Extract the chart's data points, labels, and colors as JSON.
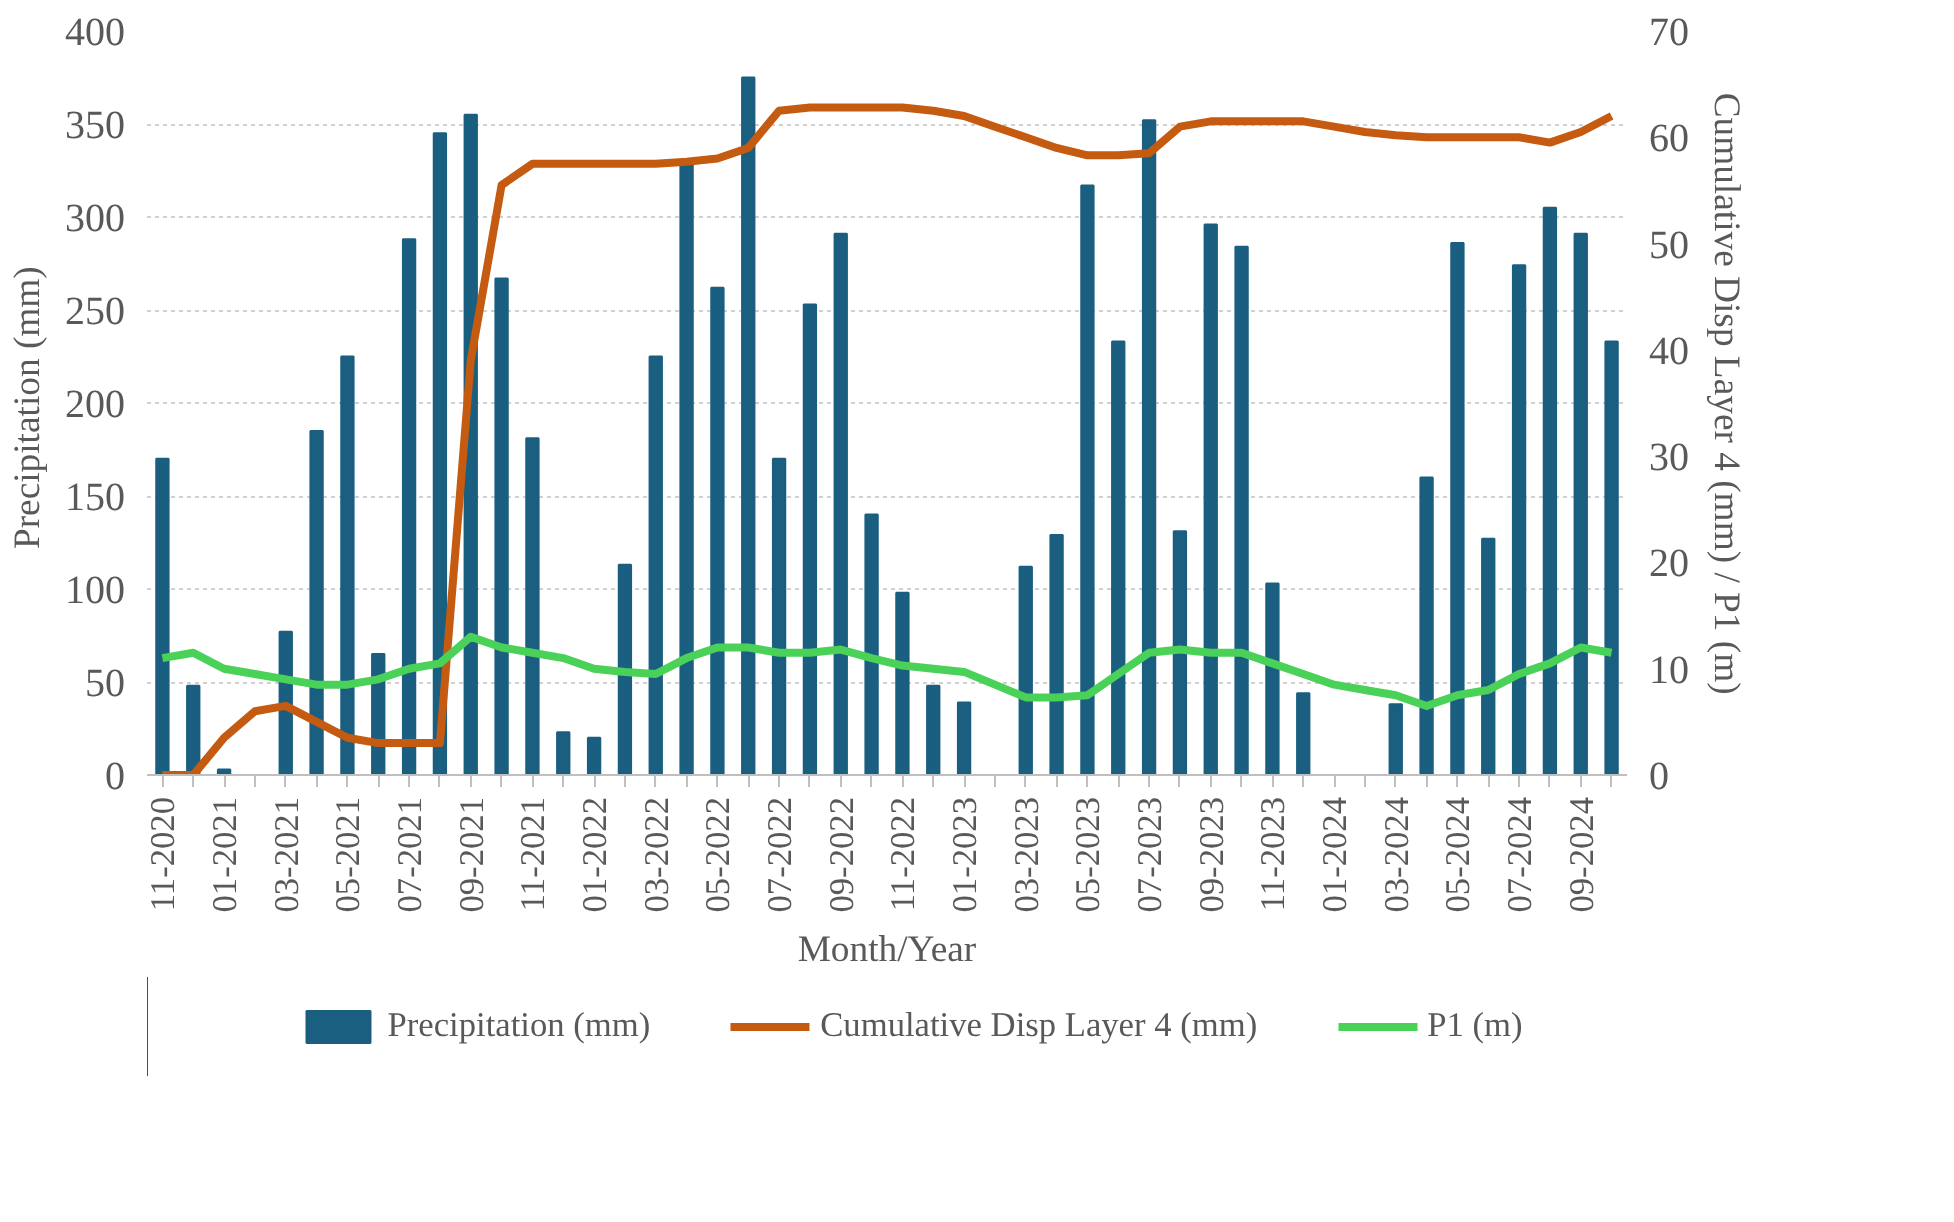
{
  "chart_data": {
    "type": "bar",
    "xlabel": "Month/Year",
    "ylabel": "Precipitation  (mm)",
    "y2label": "Cumulative  Disp Layer 4 (mm)  / P1 (m)",
    "categories": [
      "11-2020",
      null,
      "01-2021",
      null,
      "03-2021",
      null,
      "05-2021",
      null,
      "07-2021",
      null,
      "09-2021",
      null,
      "11-2021",
      null,
      "01-2022",
      null,
      "03-2022",
      null,
      "05-2022",
      null,
      "07-2022",
      null,
      "09-2022",
      null,
      "11-2022",
      null,
      "01-2023",
      null,
      "03-2023",
      null,
      "05-2023",
      null,
      "07-2023",
      null,
      "09-2023",
      null,
      "11-2023",
      null,
      "01-2024",
      null,
      "03-2024",
      null,
      "05-2024",
      null,
      "07-2024",
      null,
      "09-2024",
      null
    ],
    "ylim": [
      0,
      400
    ],
    "yticks": [
      0,
      50,
      100,
      150,
      200,
      250,
      300,
      350,
      400
    ],
    "y2lim": [
      0,
      70
    ],
    "y2ticks": [
      0,
      10,
      20,
      30,
      40,
      50,
      60,
      70
    ],
    "grid": "y",
    "legend": "bottom",
    "series": [
      {
        "name": "Precipitation (mm)",
        "color": "#1a5e80",
        "values": [
          170,
          48,
          3,
          0,
          77,
          185,
          225,
          65,
          288,
          345,
          355,
          267,
          181,
          23,
          20,
          113,
          225,
          330,
          262,
          375,
          170,
          253,
          291,
          140,
          98,
          48,
          39,
          0,
          112,
          129,
          317,
          233,
          352,
          131,
          296,
          284,
          103,
          44,
          0,
          0,
          38,
          160,
          286,
          127,
          274,
          305,
          291,
          233
        ]
      },
      {
        "name": "Cumulative Disp Layer 4 (mm)",
        "type": "line",
        "axis": "y2",
        "color": "#c55a11",
        "values": [
          0,
          0,
          3.5,
          6,
          6.5,
          5,
          3.5,
          3,
          3,
          3,
          39,
          55.5,
          57.5,
          57.5,
          57.5,
          57.5,
          57.5,
          57.7,
          58,
          59,
          62.5,
          62.8,
          62.8,
          62.8,
          62.8,
          62.5,
          62,
          61,
          60,
          59,
          58.3,
          58.3,
          58.5,
          61,
          61.5,
          61.5,
          61.5,
          61.5,
          61,
          60.5,
          60.2,
          60,
          60,
          60,
          60,
          59.5,
          60.5,
          62
        ]
      },
      {
        "name": "P1 (m)",
        "type": "line",
        "axis": "y2",
        "color": "#4ad158",
        "values": [
          11,
          11.5,
          10,
          9.5,
          9,
          8.5,
          8.5,
          9,
          10,
          10.5,
          13,
          12,
          11.5,
          11,
          10,
          9.7,
          9.5,
          11,
          12,
          12,
          11.5,
          11.5,
          11.8,
          11,
          10.3,
          10,
          9.7,
          8.5,
          7.3,
          7.3,
          7.5,
          9.5,
          11.5,
          11.8,
          11.5,
          11.5,
          10.5,
          9.5,
          8.5,
          8,
          7.5,
          6.5,
          7.5,
          8,
          9.5,
          10.5,
          12,
          11.5
        ]
      }
    ]
  }
}
